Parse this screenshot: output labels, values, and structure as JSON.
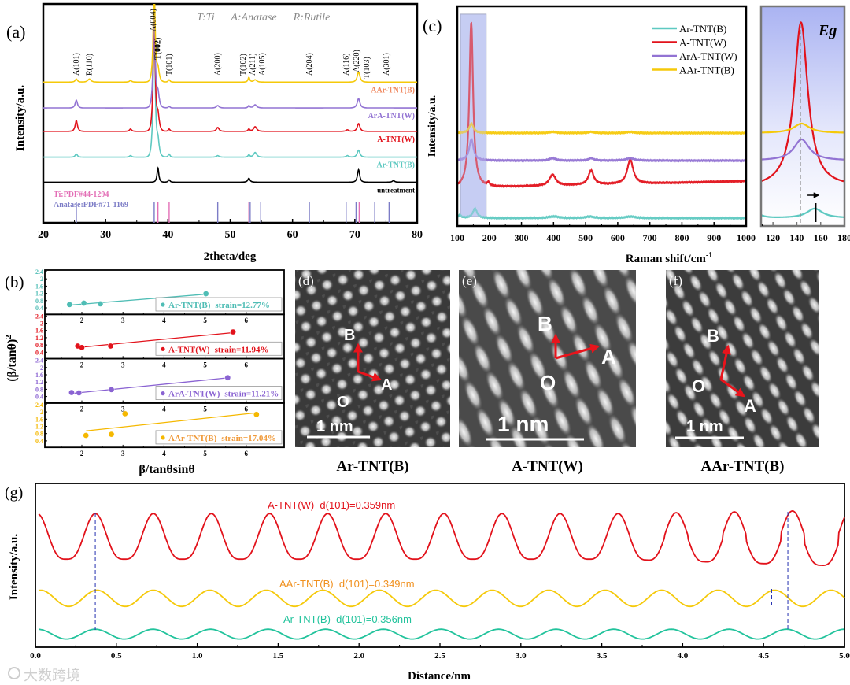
{
  "figure": {
    "panel_labels": {
      "a": "(a)",
      "b": "(b)",
      "c": "(c)",
      "d": "(d)",
      "e": "(e)",
      "f": "(f)",
      "g": "(g)"
    },
    "watermark": "大数跨境"
  },
  "chart_data": [
    {
      "id": "xrd",
      "type": "line",
      "xlabel": "2theta/deg",
      "ylabel": "Intensity/a.u.",
      "xlim": [
        20,
        80
      ],
      "ylim": [
        0,
        280
      ],
      "xticks": [
        20,
        30,
        40,
        50,
        60,
        70,
        80
      ],
      "phase_legend": "T:Ti      A:Anatase      R:Rutile",
      "series": [
        {
          "name": "untreatment",
          "color": "#000000",
          "label_color": "#000000",
          "offset": 52,
          "peaks": [
            [
              38.4,
              18,
              0.2
            ],
            [
              40.2,
              3,
              0.2
            ],
            [
              53.0,
              5,
              0.25
            ],
            [
              70.6,
              16,
              0.25
            ],
            [
              76.2,
              2,
              0.25
            ]
          ]
        },
        {
          "name": "Ar-TNT(B)",
          "color": "#5ec9c1",
          "label_color": "#5ec9c1",
          "offset": 84,
          "peaks": [
            [
              25.3,
              4,
              0.25
            ],
            [
              34.0,
              2,
              0.25
            ],
            [
              37.8,
              177,
              0.22
            ],
            [
              38.4,
              20,
              0.3
            ],
            [
              40.2,
              4,
              0.2
            ],
            [
              48.0,
              2,
              0.3
            ],
            [
              53.0,
              3,
              0.2
            ],
            [
              54.0,
              6,
              0.35
            ],
            [
              68.8,
              2,
              0.3
            ],
            [
              70.6,
              9,
              0.3
            ]
          ]
        },
        {
          "name": "A-TNT(W)",
          "color": "#e2121b",
          "label_color": "#e2121b",
          "offset": 117,
          "peaks": [
            [
              25.3,
              14,
              0.25
            ],
            [
              34.0,
              3,
              0.25
            ],
            [
              37.8,
              151,
              0.22
            ],
            [
              38.4,
              20,
              0.3
            ],
            [
              40.2,
              3,
              0.2
            ],
            [
              48.0,
              5,
              0.3
            ],
            [
              53.0,
              3,
              0.2
            ],
            [
              54.0,
              6,
              0.35
            ],
            [
              68.8,
              2,
              0.3
            ],
            [
              70.6,
              10,
              0.3
            ]
          ]
        },
        {
          "name": "ArA-TNT(W)",
          "color": "#9273d3",
          "label_color": "#9273d3",
          "offset": 147,
          "peaks": [
            [
              25.3,
              10,
              0.25
            ],
            [
              37.8,
              128,
              0.22
            ],
            [
              38.4,
              18,
              0.3
            ],
            [
              40.2,
              2,
              0.2
            ],
            [
              48.0,
              3,
              0.3
            ],
            [
              53.0,
              3,
              0.2
            ],
            [
              54.0,
              4,
              0.35
            ],
            [
              70.6,
              12,
              0.3
            ]
          ]
        },
        {
          "name": "AAr-TNT(B)",
          "color": "#f5c90a",
          "label_color": "#f08a62",
          "offset": 180,
          "peaks": [
            [
              25.3,
              4,
              0.25
            ],
            [
              27.4,
              4,
              0.35
            ],
            [
              34.0,
              2,
              0.25
            ],
            [
              37.8,
              120,
              0.22
            ],
            [
              38.4,
              16,
              0.3
            ],
            [
              40.2,
              3,
              0.2
            ],
            [
              53.0,
              6,
              0.2
            ],
            [
              54.0,
              3,
              0.35
            ],
            [
              70.6,
              13,
              0.3
            ]
          ]
        }
      ],
      "peak_labels": [
        {
          "text": "A(101)",
          "x": 25.3
        },
        {
          "text": "R(110)",
          "x": 27.4
        },
        {
          "text": "A(004)",
          "x": 37.6
        },
        {
          "text": "T(002)",
          "x": 38.4
        },
        {
          "text": "T(101)",
          "x": 40.2
        },
        {
          "text": "A(200)",
          "x": 48.0
        },
        {
          "text": "T(102)",
          "x": 53.0
        },
        {
          "text": "A(211)",
          "x": 54.0
        },
        {
          "text": "A(105)",
          "x": 55.1
        },
        {
          "text": "A(204)",
          "x": 62.7
        },
        {
          "text": "A(116)",
          "x": 68.8
        },
        {
          "text": "A(220)",
          "x": 70.3
        },
        {
          "text": "T(103)",
          "x": 70.9
        },
        {
          "text": "A(301)",
          "x": 75.1
        }
      ],
      "reference_patterns": [
        {
          "name": "Ti:PDF#44-1294",
          "color": "#e36fb6",
          "lines": [
            38.4,
            40.2,
            53.0,
            70.7
          ]
        },
        {
          "name": "Anatase:PDF#71-1169",
          "color": "#7c7cc6",
          "lines": [
            25.3,
            37.8,
            48.0,
            53.2,
            54.9,
            62.7,
            68.6,
            70.2,
            73.2,
            75.5
          ]
        }
      ]
    },
    {
      "id": "williamson-hall",
      "type": "scatter",
      "xlabel": "β/tanθsinθ",
      "ylabel": "(β/tanθ)",
      "ylabel_sup": "2",
      "xticks": [
        2,
        3,
        4,
        5,
        6
      ],
      "yticks": [
        0.4,
        0.8,
        1.2,
        1.6,
        2.0,
        2.4
      ],
      "ylim": [
        0.2,
        2.4
      ],
      "series": [
        {
          "name": "Ar-TNT(B)",
          "strain": "strain=12.77%",
          "color": "#4fbdb5",
          "points": [
            [
              1.7,
              0.58
            ],
            [
              2.05,
              0.66
            ],
            [
              2.45,
              0.62
            ],
            [
              5.02,
              1.18
            ]
          ],
          "fit": [
            [
              1.7,
              0.55
            ],
            [
              5.0,
              1.15
            ]
          ]
        },
        {
          "name": "A-TNT(W)",
          "strain": "strain=11.94%",
          "color": "#e2121b",
          "points": [
            [
              1.9,
              0.74
            ],
            [
              2.0,
              0.66
            ],
            [
              2.7,
              0.74
            ],
            [
              5.68,
              1.52
            ]
          ],
          "fit": [
            [
              2.0,
              0.68
            ],
            [
              5.68,
              1.48
            ]
          ]
        },
        {
          "name": "ArA-TNT(W)",
          "strain": "strain=11.21%",
          "color": "#8a63d2",
          "points": [
            [
              1.75,
              0.62
            ],
            [
              1.93,
              0.6
            ],
            [
              2.72,
              0.78
            ],
            [
              5.55,
              1.44
            ]
          ],
          "fit": [
            [
              1.8,
              0.58
            ],
            [
              5.5,
              1.42
            ]
          ]
        },
        {
          "name": "AAr-TNT(B)",
          "strain": "strain=17.04%",
          "color": "#f5b800",
          "label_color": "#f09a3a",
          "points": [
            [
              2.1,
              0.7
            ],
            [
              2.72,
              0.76
            ],
            [
              3.05,
              1.9
            ],
            [
              6.25,
              1.86
            ]
          ],
          "fit": [
            [
              2.1,
              0.95
            ],
            [
              6.25,
              1.95
            ]
          ]
        }
      ]
    },
    {
      "id": "raman",
      "type": "line",
      "xlabel": "Raman shift/cm",
      "xlabel_sup": "-1",
      "ylabel": "Intensity/a.u.",
      "xlim": [
        100,
        1000
      ],
      "ylim": [
        0,
        280
      ],
      "xticks": [
        100,
        200,
        300,
        400,
        500,
        600,
        700,
        800,
        900,
        1000
      ],
      "highlight_range": [
        110,
        190
      ],
      "inset": {
        "xlim": [
          110,
          180
        ],
        "xticks": [
          120,
          140,
          160,
          180
        ],
        "annotation": "Eg",
        "reference_line": 143,
        "shift_marker": 156
      },
      "series": [
        {
          "name": "Ar-TNT(B)",
          "color": "#5ec9c1",
          "baseline": [
            10,
            10
          ],
          "peaks": [
            [
              108,
              4,
              5
            ],
            [
              155,
              12,
              8
            ],
            [
              400,
              2,
              20
            ],
            [
              512,
              2,
              15
            ],
            [
              640,
              2,
              18
            ]
          ]
        },
        {
          "name": "A-TNT(W)",
          "color": "#e2121b",
          "baseline": [
            48,
            57
          ],
          "peaks": [
            [
              143.5,
              210,
              7
            ],
            [
              197,
              4,
              4
            ],
            [
              397,
              14,
              12
            ],
            [
              517,
              18,
              10
            ],
            [
              639,
              31,
              11
            ]
          ]
        },
        {
          "name": "ArA-TNT(W)",
          "color": "#9273d3",
          "baseline": [
            83,
            83
          ],
          "peaks": [
            [
              144,
              27,
              8
            ],
            [
              397,
              3,
              12
            ],
            [
              517,
              3,
              10
            ],
            [
              639,
              3,
              15
            ]
          ]
        },
        {
          "name": "AAr-TNT(B)",
          "color": "#f5c90a",
          "baseline": [
            118,
            118
          ],
          "peaks": [
            [
              144,
              12,
              8
            ],
            [
              397,
              1.5,
              12
            ],
            [
              517,
              1.5,
              10
            ],
            [
              639,
              1.5,
              12
            ]
          ]
        }
      ]
    },
    {
      "id": "line-profile",
      "type": "line",
      "xlabel": "Distance/nm",
      "ylabel": "Intensity/a.u.",
      "xlim": [
        0,
        5
      ],
      "ylim": [
        0,
        100
      ],
      "xticks": [
        0.0,
        0.5,
        1.0,
        1.5,
        2.0,
        2.5,
        3.0,
        3.5,
        4.0,
        4.5,
        5.0
      ],
      "series": [
        {
          "name": "A-TNT(W)",
          "label": "A-TNT(W)  d(101)=0.359nm",
          "color": "#e2121b",
          "period": 0.359,
          "first_peak": 0.37,
          "center": 68,
          "amplitude": 14,
          "sharpness": 2
        },
        {
          "name": "AAr-TNT(B)",
          "label": "AAr-TNT(B)  d(101)=0.349nm",
          "color": "#f5c90a",
          "label_color": "#f0901e",
          "period": 0.349,
          "first_peak": 0.38,
          "center": 30,
          "amplitude": 5,
          "sharpness": 1
        },
        {
          "name": "Ar-TNT(B)",
          "label": "Ar-TNT(B)  d(101)=0.356nm",
          "color": "#22c39c",
          "period": 0.356,
          "first_peak": 0.37,
          "center": 8,
          "amplitude": 3,
          "sharpness": 1
        }
      ],
      "markers": [
        0.37,
        4.55,
        4.65
      ]
    }
  ],
  "tem_images": [
    {
      "label": "(d)",
      "title": "Ar-TNT(B)",
      "scale_bar": "1 nm",
      "origin": "O",
      "axis_a": "A",
      "axis_b": "B"
    },
    {
      "label": "(e)",
      "title": "A-TNT(W)",
      "scale_bar": "1 nm",
      "origin": "O",
      "axis_a": "A",
      "axis_b": "B"
    },
    {
      "label": "(f)",
      "title": "AAr-TNT(B)",
      "scale_bar": "1 nm",
      "origin": "O",
      "axis_a": "A",
      "axis_b": "B"
    }
  ]
}
